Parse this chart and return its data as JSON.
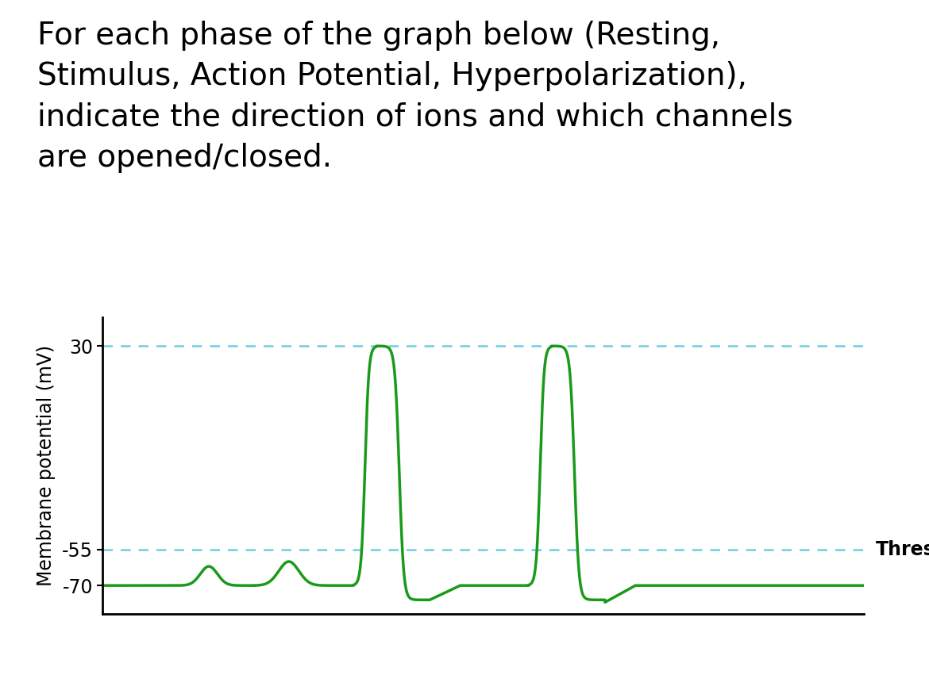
{
  "title_text": "For each phase of the graph below (Resting,\nStimulus, Action Potential, Hyperpolarization),\nindicate the direction of ions and which channels\nare opened/closed.",
  "ylabel": "Membrane potential (mV)",
  "yticks": [
    30,
    -55,
    -70
  ],
  "ytick_labels": [
    "30",
    "-55",
    "-70"
  ],
  "ylim": [
    -82,
    42
  ],
  "xlim": [
    0,
    100
  ],
  "hline_30": 30,
  "hline_55": -55,
  "threshold_label": "Threshold",
  "line_color": "#1a9a1a",
  "dashed_color": "#6ecfdc",
  "bg_color": "#ffffff",
  "title_fontsize": 28,
  "label_fontsize": 17,
  "tick_fontsize": 17,
  "threshold_fontsize": 17
}
